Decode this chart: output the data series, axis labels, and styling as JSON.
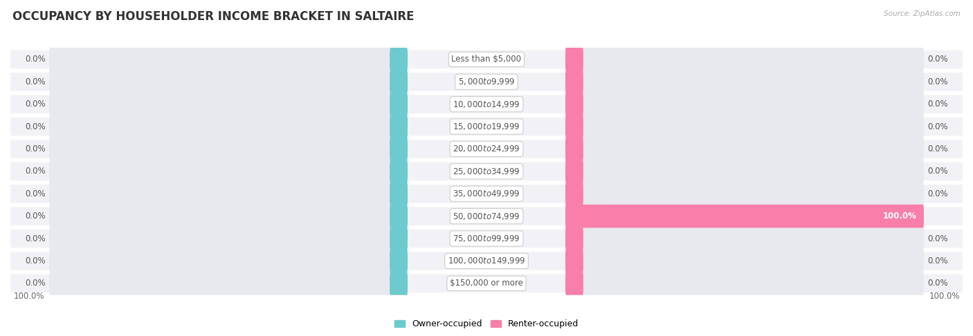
{
  "title": "OCCUPANCY BY HOUSEHOLDER INCOME BRACKET IN SALTAIRE",
  "source": "Source: ZipAtlas.com",
  "categories": [
    "Less than $5,000",
    "$5,000 to $9,999",
    "$10,000 to $14,999",
    "$15,000 to $19,999",
    "$20,000 to $24,999",
    "$25,000 to $34,999",
    "$35,000 to $49,999",
    "$50,000 to $74,999",
    "$75,000 to $99,999",
    "$100,000 to $149,999",
    "$150,000 or more"
  ],
  "owner_values": [
    0.0,
    0.0,
    0.0,
    0.0,
    0.0,
    0.0,
    0.0,
    0.0,
    0.0,
    0.0,
    0.0
  ],
  "renter_values": [
    0.0,
    0.0,
    0.0,
    0.0,
    0.0,
    0.0,
    0.0,
    100.0,
    0.0,
    0.0,
    0.0
  ],
  "owner_color": "#6ecbcd",
  "renter_color": "#f87faa",
  "bar_bg_color": "#e8e8ef",
  "row_bg_color": "#f2f2f6",
  "row_line_color": "#ffffff",
  "label_color": "#555555",
  "title_color": "#333333",
  "source_color": "#aaaaaa",
  "axis_label_color": "#666666",
  "max_value": 100.0,
  "left_axis_label": "100.0%",
  "right_axis_label": "100.0%",
  "title_fontsize": 12,
  "label_fontsize": 8.5,
  "category_fontsize": 8.5,
  "bar_height": 0.52,
  "stub_size": 5.0
}
